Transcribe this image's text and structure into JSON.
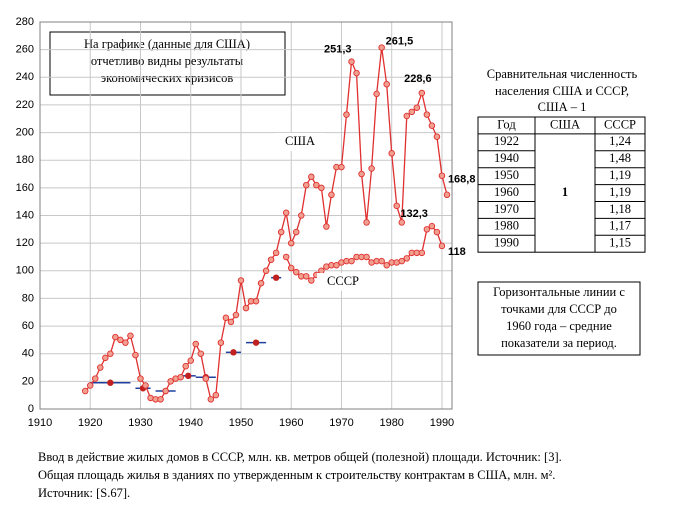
{
  "chart_data": {
    "type": "line",
    "xlim": [
      1910,
      1992
    ],
    "ylim": [
      0,
      280
    ],
    "xticks": [
      1910,
      1920,
      1930,
      1940,
      1950,
      1960,
      1970,
      1980,
      1990
    ],
    "yticks": [
      0,
      20,
      40,
      60,
      80,
      100,
      120,
      140,
      160,
      180,
      200,
      220,
      240,
      260,
      280
    ],
    "grid": true,
    "series": [
      {
        "name": "США",
        "color": "#e03030",
        "x": [
          1919,
          1920,
          1921,
          1922,
          1923,
          1924,
          1925,
          1926,
          1927,
          1928,
          1929,
          1930,
          1931,
          1932,
          1933,
          1934,
          1935,
          1936,
          1937,
          1938,
          1939,
          1940,
          1941,
          1942,
          1943,
          1944,
          1945,
          1946,
          1947,
          1948,
          1949,
          1950,
          1951,
          1952,
          1953,
          1954,
          1955,
          1956,
          1957,
          1958,
          1959,
          1960,
          1961,
          1962,
          1963,
          1964,
          1965,
          1966,
          1967,
          1968,
          1969,
          1970,
          1971,
          1972,
          1973,
          1974,
          1975,
          1976,
          1977,
          1978,
          1979,
          1980,
          1981,
          1982,
          1983,
          1984,
          1985,
          1986,
          1987,
          1988,
          1989,
          1990,
          1991
        ],
        "values": [
          13,
          17,
          22,
          30,
          37,
          40,
          52,
          50,
          48,
          53,
          39,
          22,
          17,
          8,
          7,
          7,
          13,
          20,
          22,
          23,
          31,
          35,
          47,
          40,
          22,
          7,
          10,
          48,
          66,
          63,
          68,
          93,
          73,
          78,
          78,
          91,
          100,
          108,
          113,
          128,
          142,
          120,
          128,
          140,
          162,
          168,
          162,
          160,
          132,
          155,
          175,
          175,
          213,
          251.3,
          243,
          170,
          135,
          174,
          228,
          261.5,
          235,
          185,
          147,
          135,
          212,
          215,
          218,
          228.6,
          213,
          205,
          197,
          168.8,
          155
        ],
        "value_labels": [
          null,
          null,
          null,
          null,
          null,
          null,
          null,
          null,
          null,
          null,
          null,
          null,
          null,
          null,
          null,
          null,
          null,
          null,
          null,
          null,
          null,
          null,
          null,
          null,
          null,
          null,
          null,
          null,
          null,
          null,
          null,
          null,
          null,
          null,
          null,
          null,
          null,
          null,
          null,
          null,
          null,
          null,
          null,
          null,
          null,
          null,
          null,
          null,
          null,
          null,
          null,
          null,
          null,
          "251,3",
          null,
          null,
          null,
          null,
          null,
          "261,5",
          null,
          null,
          null,
          null,
          null,
          null,
          null,
          "228,6",
          null,
          null,
          null,
          "168,8",
          null
        ]
      },
      {
        "name": "СССР",
        "color": "#e03030",
        "x": [
          1959,
          1960,
          1961,
          1962,
          1963,
          1964,
          1965,
          1966,
          1967,
          1968,
          1969,
          1970,
          1971,
          1972,
          1973,
          1974,
          1975,
          1976,
          1977,
          1978,
          1979,
          1980,
          1981,
          1982,
          1983,
          1984,
          1985,
          1986,
          1987,
          1988,
          1989,
          1990
        ],
        "values": [
          110,
          102,
          99,
          96,
          96,
          93,
          97,
          100,
          103,
          104,
          104,
          106,
          107,
          107,
          110,
          110,
          110,
          106,
          107,
          107,
          104,
          106,
          106,
          107,
          109,
          113,
          113,
          113,
          130,
          132.3,
          128,
          118
        ],
        "value_labels": [
          null,
          null,
          null,
          null,
          null,
          null,
          null,
          null,
          null,
          null,
          null,
          null,
          null,
          null,
          null,
          null,
          null,
          null,
          null,
          null,
          null,
          null,
          null,
          null,
          null,
          null,
          null,
          null,
          null,
          "132,3",
          null,
          "118"
        ]
      }
    ],
    "ussr_averages": {
      "color": "#2040a0",
      "dot_color": "#c02020",
      "start": [
        1920,
        1929,
        1933,
        1938,
        1941,
        1947,
        1951,
        1956
      ],
      "end": [
        1928,
        1932,
        1937,
        1941,
        1945,
        1950,
        1955,
        1958
      ],
      "values": [
        19,
        15,
        13,
        24,
        23,
        41,
        48,
        95
      ]
    },
    "annotation": [
      "На графике (данные для США)",
      "отчетливо видны результаты",
      "экономических кризисов"
    ],
    "note": [
      "Горизонтальные линии с",
      "точками  для СССР до",
      "1960 года – средние",
      "показатели за период."
    ]
  },
  "table": {
    "title": [
      "Сравнительная численность",
      "населения США и СССР,",
      "США – 1"
    ],
    "header": [
      "Год",
      "США",
      "СССР"
    ],
    "years": [
      "1922",
      "1940",
      "1950",
      "1960",
      "1970",
      "1980",
      "1990"
    ],
    "usa": "1",
    "ussr": [
      "1,24",
      "1,48",
      "1,19",
      "1,19",
      "1,18",
      "1,17",
      "1,15"
    ]
  },
  "caption": [
    "Ввод в действие жилых домов в СССР, млн. кв. метров общей (полезной) площади. Источник:  [3].",
    "Общая площадь жилья в зданиях по утвержденным к строительству контрактам в США,  млн. м².",
    "Источник:  [S.67]."
  ]
}
